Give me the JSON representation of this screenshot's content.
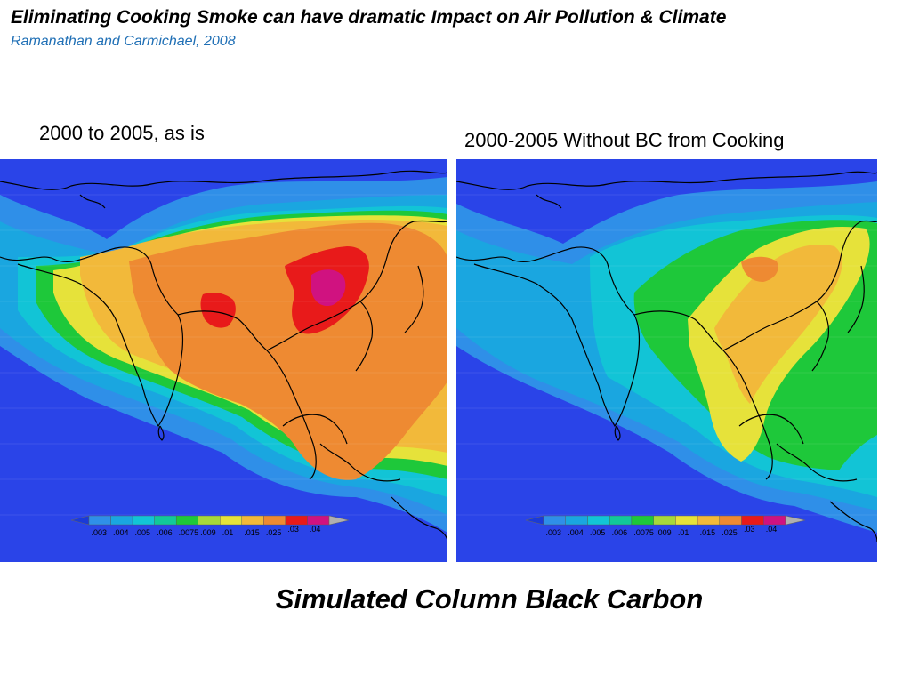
{
  "header": {
    "title": "Eliminating Cooking Smoke can have dramatic Impact on Air Pollution & Climate",
    "citation": "Ramanathan and Carmichael, 2008"
  },
  "panels": [
    {
      "label": "2000 to 2005, as is"
    },
    {
      "label": "2000-2005 Without BC from Cooking"
    }
  ],
  "colorbar": {
    "ticks": [
      ".003",
      ".004",
      ".005",
      ".006",
      ".0075",
      ".009",
      ".01",
      ".015",
      ".025",
      ".03",
      ".04"
    ],
    "colors": [
      "#2f8fe8",
      "#1aa6e0",
      "#12c4d6",
      "#12c89a",
      "#1ec83a",
      "#a6d83a",
      "#e6e23a",
      "#f2b93a",
      "#ee8a32",
      "#e81a1a",
      "#d01280"
    ],
    "ocean_color": "#2a44e8"
  },
  "caption": "Simulated Column Black Carbon"
}
